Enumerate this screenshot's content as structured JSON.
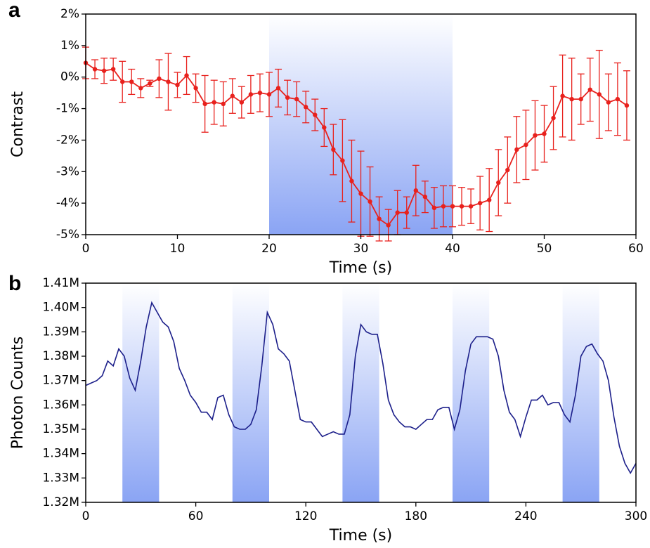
{
  "chart_data": [
    {
      "type": "line",
      "panel_label": "a",
      "x_label": "Time (s)",
      "y_label": "Contrast",
      "color": "#e8211d",
      "shade_color": "#8aa4f4",
      "shaded_intervals": [
        [
          20,
          40
        ]
      ],
      "x": [
        0,
        1,
        2,
        3,
        4,
        5,
        6,
        7,
        8,
        9,
        10,
        11,
        12,
        13,
        14,
        15,
        16,
        17,
        18,
        19,
        20,
        21,
        22,
        23,
        24,
        25,
        26,
        27,
        28,
        29,
        30,
        31,
        32,
        33,
        34,
        35,
        36,
        37,
        38,
        39,
        40,
        41,
        42,
        43,
        44,
        45,
        46,
        47,
        48,
        49,
        50,
        51,
        52,
        53,
        54,
        55,
        56,
        57,
        58,
        59
      ],
      "values": [
        0.45,
        0.25,
        0.2,
        0.25,
        -0.15,
        -0.15,
        -0.35,
        -0.2,
        -0.05,
        -0.15,
        -0.25,
        0.05,
        -0.35,
        -0.85,
        -0.8,
        -0.85,
        -0.6,
        -0.8,
        -0.55,
        -0.5,
        -0.55,
        -0.35,
        -0.65,
        -0.7,
        -0.95,
        -1.2,
        -1.6,
        -2.3,
        -2.65,
        -3.3,
        -3.7,
        -3.95,
        -4.5,
        -4.7,
        -4.3,
        -4.3,
        -3.6,
        -3.8,
        -4.15,
        -4.1,
        -4.1,
        -4.1,
        -4.1,
        -4.0,
        -3.9,
        -3.35,
        -2.95,
        -2.3,
        -2.15,
        -1.85,
        -1.8,
        -1.3,
        -0.6,
        -0.7,
        -0.7,
        -0.4,
        -0.55,
        -0.8,
        -0.7,
        -0.9
      ],
      "errors": [
        0.5,
        0.3,
        0.4,
        0.35,
        0.65,
        0.4,
        0.3,
        0.1,
        0.6,
        0.9,
        0.4,
        0.6,
        0.45,
        0.9,
        0.7,
        0.7,
        0.55,
        0.5,
        0.6,
        0.6,
        0.7,
        0.6,
        0.55,
        0.55,
        0.5,
        0.5,
        0.6,
        0.8,
        1.3,
        1.3,
        1.35,
        1.1,
        0.7,
        0.5,
        0.7,
        0.5,
        0.8,
        0.5,
        0.65,
        0.65,
        0.65,
        0.6,
        0.55,
        0.85,
        1.0,
        1.05,
        1.05,
        1.05,
        1.1,
        1.1,
        0.9,
        1.0,
        1.3,
        1.3,
        0.8,
        1.0,
        1.4,
        0.9,
        1.15,
        1.1
      ],
      "xlim": [
        0,
        60
      ],
      "ylim": [
        -5,
        2
      ],
      "xticks": [
        0,
        10,
        20,
        30,
        40,
        50,
        60
      ],
      "yticks": [
        {
          "value": -5,
          "label": "-5%"
        },
        {
          "value": -4,
          "label": "-4%"
        },
        {
          "value": -3,
          "label": "-3%"
        },
        {
          "value": -2,
          "label": "-2%"
        },
        {
          "value": -1,
          "label": "-1%"
        },
        {
          "value": 0,
          "label": "0%"
        },
        {
          "value": 1,
          "label": "1%"
        },
        {
          "value": 2,
          "label": "2%"
        }
      ]
    },
    {
      "type": "line",
      "panel_label": "b",
      "x_label": "Time (s)",
      "y_label": "Photon Counts",
      "color": "#1c1f8a",
      "shade_color": "#8aa4f4",
      "shaded_intervals": [
        [
          20,
          40
        ],
        [
          80,
          100
        ],
        [
          140,
          160
        ],
        [
          200,
          220
        ],
        [
          260,
          280
        ]
      ],
      "x": [
        0,
        3,
        6,
        9,
        12,
        15,
        18,
        21,
        24,
        27,
        30,
        33,
        36,
        39,
        42,
        45,
        48,
        51,
        54,
        57,
        60,
        63,
        66,
        69,
        72,
        75,
        78,
        81,
        84,
        87,
        90,
        93,
        96,
        99,
        102,
        105,
        108,
        111,
        114,
        117,
        120,
        123,
        126,
        129,
        132,
        135,
        138,
        141,
        144,
        147,
        150,
        153,
        156,
        159,
        162,
        165,
        168,
        171,
        174,
        177,
        180,
        183,
        186,
        189,
        192,
        195,
        198,
        201,
        204,
        207,
        210,
        213,
        216,
        219,
        222,
        225,
        228,
        231,
        234,
        237,
        240,
        243,
        246,
        249,
        252,
        255,
        258,
        261,
        264,
        267,
        270,
        273,
        276,
        279,
        282,
        285,
        288,
        291,
        294,
        297,
        300
      ],
      "values": [
        1368000,
        1369000,
        1370000,
        1372000,
        1378000,
        1376000,
        1383000,
        1380000,
        1371000,
        1366000,
        1378000,
        1392000,
        1402000,
        1398000,
        1394000,
        1392000,
        1386000,
        1375000,
        1370000,
        1364000,
        1361000,
        1357000,
        1357000,
        1354000,
        1363000,
        1364000,
        1356000,
        1351000,
        1350000,
        1350000,
        1352000,
        1358000,
        1376000,
        1398000,
        1393000,
        1383000,
        1381000,
        1378000,
        1366000,
        1354000,
        1353000,
        1353000,
        1350000,
        1347000,
        1348000,
        1349000,
        1348000,
        1348000,
        1356000,
        1380000,
        1393000,
        1390000,
        1389000,
        1389000,
        1377000,
        1362000,
        1356000,
        1353000,
        1351000,
        1351000,
        1350000,
        1352000,
        1354000,
        1354000,
        1358000,
        1359000,
        1359000,
        1350000,
        1358000,
        1374000,
        1385000,
        1388000,
        1388000,
        1388000,
        1387000,
        1380000,
        1366000,
        1357000,
        1354000,
        1347000,
        1355000,
        1362000,
        1362000,
        1364000,
        1360000,
        1361000,
        1361000,
        1356000,
        1353000,
        1364000,
        1380000,
        1384000,
        1385000,
        1381000,
        1378000,
        1370000,
        1355000,
        1343000,
        1336000,
        1332000,
        1336000
      ],
      "xlim": [
        0,
        300
      ],
      "ylim": [
        1320000,
        1410000
      ],
      "xticks": [
        0,
        60,
        120,
        180,
        240,
        300
      ],
      "yticks": [
        {
          "value": 1320000,
          "label": "1.32M"
        },
        {
          "value": 1330000,
          "label": "1.33M"
        },
        {
          "value": 1340000,
          "label": "1.34M"
        },
        {
          "value": 1350000,
          "label": "1.35M"
        },
        {
          "value": 1360000,
          "label": "1.36M"
        },
        {
          "value": 1370000,
          "label": "1.37M"
        },
        {
          "value": 1380000,
          "label": "1.38M"
        },
        {
          "value": 1390000,
          "label": "1.39M"
        },
        {
          "value": 1400000,
          "label": "1.40M"
        },
        {
          "value": 1410000,
          "label": "1.41M"
        }
      ]
    }
  ]
}
